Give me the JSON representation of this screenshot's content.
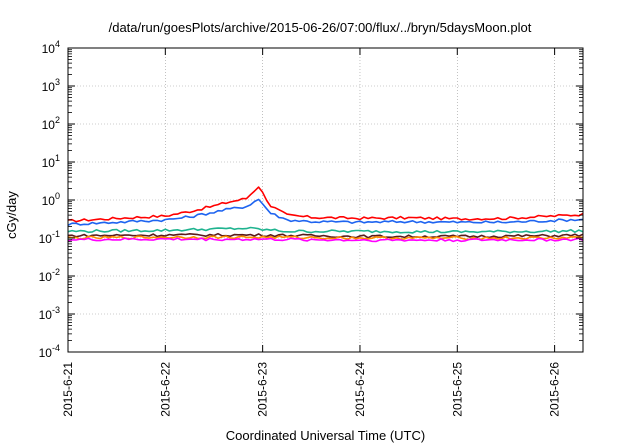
{
  "chart_data": {
    "type": "line",
    "title": "/data/run/goesPlots/archive/2015-06-26/07:00/flux/../bryn/5daysMoon.plot",
    "xlabel": "Coordinated Universal Time (UTC)",
    "ylabel": "cGy/day",
    "x_scale": "time",
    "y_scale": "log",
    "xlim": [
      "2015-06-21",
      "2015-06-26 07:00"
    ],
    "ylim": [
      0.0001,
      10000
    ],
    "grid": true,
    "legend": "none",
    "x_ticks": [
      "2015-6-21",
      "2015-6-22",
      "2015-6-23",
      "2015-6-24",
      "2015-6-25",
      "2015-6-26"
    ],
    "y_ticks": [
      {
        "value": 0.0001,
        "base": "10",
        "exp": "-4"
      },
      {
        "value": 0.001,
        "base": "10",
        "exp": "-3"
      },
      {
        "value": 0.01,
        "base": "10",
        "exp": "-2"
      },
      {
        "value": 0.1,
        "base": "10",
        "exp": "-1"
      },
      {
        "value": 1,
        "base": "10",
        "exp": "0"
      },
      {
        "value": 10,
        "base": "10",
        "exp": "1"
      },
      {
        "value": 100,
        "base": "10",
        "exp": "2"
      },
      {
        "value": 1000,
        "base": "10",
        "exp": "3"
      },
      {
        "value": 10000,
        "base": "10",
        "exp": "4"
      }
    ],
    "series": [
      {
        "color": "#ff0000",
        "x": [
          "2015-06-21 00:00",
          "2015-06-21 12:00",
          "2015-06-22 00:00",
          "2015-06-22 06:00",
          "2015-06-22 12:00",
          "2015-06-22 16:00",
          "2015-06-22 20:00",
          "2015-06-22 23:00",
          "2015-06-23 02:00",
          "2015-06-23 06:00",
          "2015-06-23 12:00",
          "2015-06-24 00:00",
          "2015-06-24 12:00",
          "2015-06-25 00:00",
          "2015-06-25 12:00",
          "2015-06-26 00:00",
          "2015-06-26 07:00"
        ],
        "y": [
          0.28,
          0.33,
          0.38,
          0.5,
          0.7,
          0.9,
          1.1,
          2.3,
          0.7,
          0.4,
          0.35,
          0.33,
          0.34,
          0.32,
          0.33,
          0.38,
          0.42
        ]
      },
      {
        "color": "#1e64f0",
        "x": [
          "2015-06-21 00:00",
          "2015-06-21 12:00",
          "2015-06-22 00:00",
          "2015-06-22 06:00",
          "2015-06-22 12:00",
          "2015-06-22 16:00",
          "2015-06-22 20:00",
          "2015-06-22 23:00",
          "2015-06-23 02:00",
          "2015-06-23 06:00",
          "2015-06-23 12:00",
          "2015-06-24 00:00",
          "2015-06-24 12:00",
          "2015-06-25 00:00",
          "2015-06-25 12:00",
          "2015-06-26 00:00",
          "2015-06-26 07:00"
        ],
        "y": [
          0.23,
          0.26,
          0.3,
          0.36,
          0.48,
          0.58,
          0.68,
          1.05,
          0.45,
          0.3,
          0.27,
          0.26,
          0.27,
          0.26,
          0.26,
          0.29,
          0.31
        ]
      },
      {
        "color": "#1fb38f",
        "x": [
          "2015-06-21 00:00",
          "2015-06-22 00:00",
          "2015-06-22 20:00",
          "2015-06-23 06:00",
          "2015-06-24 00:00",
          "2015-06-25 00:00",
          "2015-06-26 00:00",
          "2015-06-26 07:00"
        ],
        "y": [
          0.15,
          0.16,
          0.18,
          0.15,
          0.15,
          0.145,
          0.15,
          0.155
        ]
      },
      {
        "color": "#5a1a1a",
        "x": [
          "2015-06-21 00:00",
          "2015-06-22 00:00",
          "2015-06-23 00:00",
          "2015-06-24 00:00",
          "2015-06-25 00:00",
          "2015-06-26 00:00",
          "2015-06-26 07:00"
        ],
        "y": [
          0.115,
          0.12,
          0.12,
          0.11,
          0.11,
          0.115,
          0.12
        ]
      },
      {
        "color": "#ff8c00",
        "x": [
          "2015-06-21 00:00",
          "2015-06-22 00:00",
          "2015-06-23 00:00",
          "2015-06-24 00:00",
          "2015-06-25 00:00",
          "2015-06-26 00:00",
          "2015-06-26 07:00"
        ],
        "y": [
          0.1,
          0.105,
          0.105,
          0.1,
          0.1,
          0.1,
          0.105
        ]
      },
      {
        "color": "#ff00ff",
        "x": [
          "2015-06-21 00:00",
          "2015-06-22 00:00",
          "2015-06-23 00:00",
          "2015-06-24 00:00",
          "2015-06-25 00:00",
          "2015-06-26 00:00",
          "2015-06-26 07:00"
        ],
        "y": [
          0.09,
          0.093,
          0.092,
          0.088,
          0.088,
          0.09,
          0.092
        ]
      }
    ]
  }
}
